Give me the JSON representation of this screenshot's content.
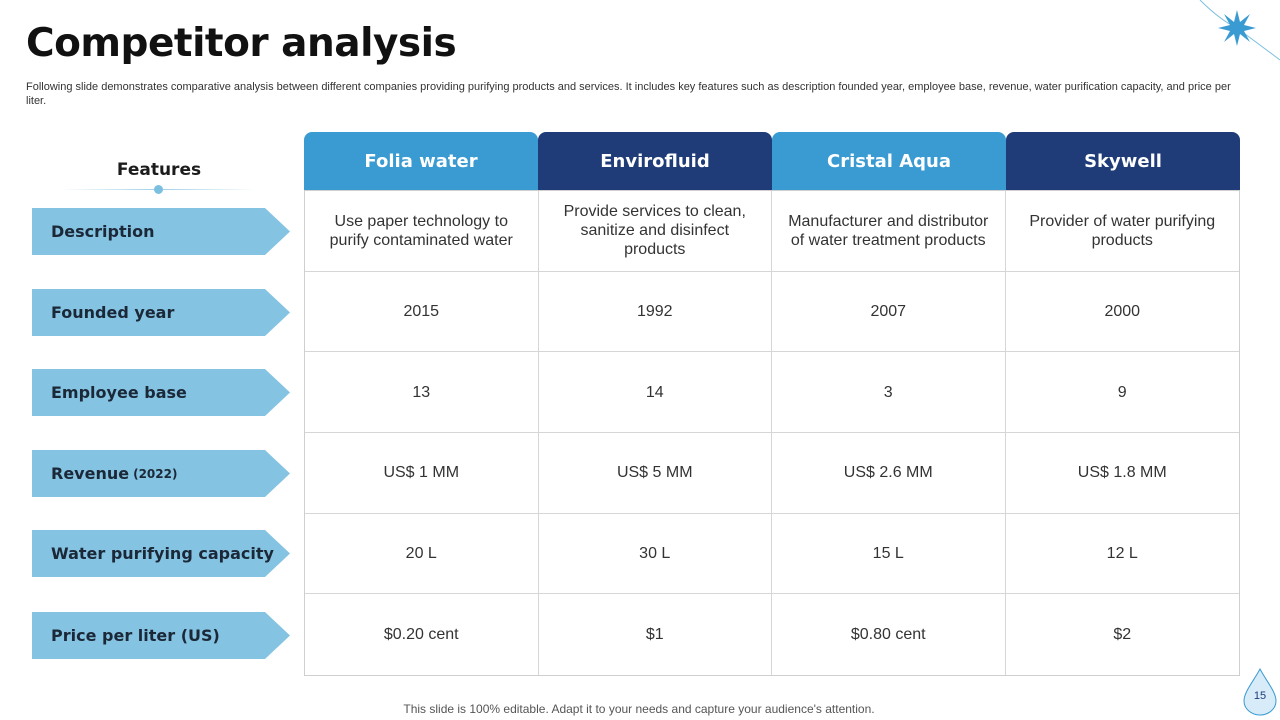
{
  "slide": {
    "title": "Competitor analysis",
    "subtitle": "Following slide demonstrates comparative analysis between different companies providing purifying products and services. It includes key features such as description founded year, employee base, revenue, water purification capacity,  and price per liter.",
    "footer": "This slide is 100% editable. Adapt it to your needs and capture your audience's attention.",
    "page_number": "15"
  },
  "features": {
    "heading": "Features",
    "rows": [
      {
        "label": "Description",
        "note": ""
      },
      {
        "label": "Founded year",
        "note": ""
      },
      {
        "label": "Employee base",
        "note": ""
      },
      {
        "label": "Revenue",
        "note": "(2022)"
      },
      {
        "label": "Water purifying capacity",
        "note": ""
      },
      {
        "label": "Price per liter (US)",
        "note": ""
      }
    ]
  },
  "companies": [
    "Folia water",
    "Envirofluid",
    "Cristal Aqua",
    "Skywell"
  ],
  "table": [
    [
      "Use paper technology to purify contaminated water",
      "Provide services to clean, sanitize and disinfect products",
      "Manufacturer  and distributor of water treatment products",
      "Provider of water purifying products"
    ],
    [
      "2015",
      "1992",
      "2007",
      "2000"
    ],
    [
      "13",
      "14",
      "3",
      "9"
    ],
    [
      "US$ 1 MM",
      "US$ 5 MM",
      "US$ 2.6 MM",
      "US$ 1.8 MM"
    ],
    [
      "20 L",
      "30 L",
      "15 L",
      "12 L"
    ],
    [
      "$0.20 cent",
      "$1",
      "$0.80 cent",
      "$2"
    ]
  ],
  "colors": {
    "header_light": "#3a9bd2",
    "header_dark": "#1f3c78",
    "feature_arrow": "#85c3e2",
    "accent_star": "#3a9bd2"
  },
  "icons": {
    "corner": "water-splash-star-icon",
    "page": "water-drop-icon"
  }
}
